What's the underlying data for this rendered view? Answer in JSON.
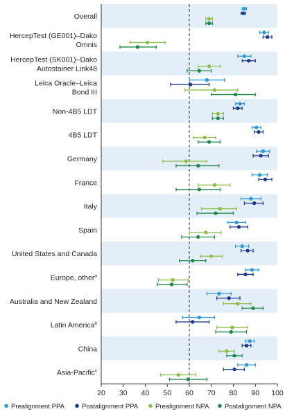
{
  "chart_data": {
    "type": "forest",
    "xlim": [
      20,
      100
    ],
    "xticks": [
      20,
      30,
      40,
      50,
      60,
      70,
      80,
      90,
      100
    ],
    "reference_line": 60,
    "legend_placement": "bottom",
    "series": [
      {
        "name": "Prealignment PPA",
        "color": "#2e9bd6"
      },
      {
        "name": "Postalignment PPA",
        "color": "#1e3c8c"
      },
      {
        "name": "Prealignment NPA",
        "color": "#8cbf4a"
      },
      {
        "name": "Postalignment NPA",
        "color": "#1f8a4c"
      }
    ],
    "categories": [
      {
        "lines": [
          "Overall"
        ],
        "sup": "",
        "values": [
          [
            85,
            84,
            86
          ],
          [
            84.5,
            83.5,
            85.5
          ],
          [
            69,
            67.5,
            70.5
          ],
          [
            69,
            67.5,
            70.5
          ]
        ]
      },
      {
        "lines": [
          "HercepTest (GE001)–Dako",
          "Omnis"
        ],
        "sup": "",
        "values": [
          [
            94,
            92,
            96
          ],
          [
            95.5,
            93.5,
            97.5
          ],
          [
            41,
            33,
            49
          ],
          [
            36.5,
            28.5,
            45
          ]
        ]
      },
      {
        "lines": [
          "HercepTest (SK001)–Dako",
          "Autostainer Link48"
        ],
        "sup": "",
        "values": [
          [
            85,
            82,
            88
          ],
          [
            87,
            84,
            90
          ],
          [
            69,
            64,
            74
          ],
          [
            64.5,
            59,
            70
          ]
        ]
      },
      {
        "lines": [
          "Leica Oracle–Leica",
          "Bond III"
        ],
        "sup": "",
        "values": [
          [
            68,
            60,
            76
          ],
          [
            60.5,
            51.5,
            69
          ],
          [
            71.5,
            58,
            82
          ],
          [
            81,
            70,
            90
          ]
        ]
      },
      {
        "lines": [
          "Non-4B5 LDT"
        ],
        "sup": "",
        "values": [
          [
            83,
            81,
            85
          ],
          [
            82,
            80,
            84
          ],
          [
            73,
            70.5,
            75.5
          ],
          [
            73,
            70.5,
            75.5
          ]
        ]
      },
      {
        "lines": [
          "4B5 LDT"
        ],
        "sup": "",
        "values": [
          [
            90.5,
            88.5,
            92.5
          ],
          [
            91.5,
            89.5,
            93.5
          ],
          [
            67,
            62,
            72
          ],
          [
            69,
            64,
            74
          ]
        ]
      },
      {
        "lines": [
          "Germany"
        ],
        "sup": "",
        "values": [
          [
            93.5,
            90.5,
            96.5
          ],
          [
            92.5,
            89,
            96
          ],
          [
            58.5,
            48,
            68
          ],
          [
            64,
            54,
            73.5
          ]
        ]
      },
      {
        "lines": [
          "France"
        ],
        "sup": "",
        "values": [
          [
            92,
            88.5,
            95.5
          ],
          [
            94.5,
            91.5,
            97.5
          ],
          [
            71.5,
            64,
            78.5
          ],
          [
            64.5,
            54,
            74
          ]
        ]
      },
      {
        "lines": [
          "Italy"
        ],
        "sup": "",
        "values": [
          [
            88,
            83.5,
            92.5
          ],
          [
            89.5,
            85,
            93.5
          ],
          [
            74,
            65.5,
            81.5
          ],
          [
            72,
            63.5,
            80
          ]
        ]
      },
      {
        "lines": [
          "Spain"
        ],
        "sup": "",
        "values": [
          [
            81.5,
            77.5,
            85.5
          ],
          [
            82.5,
            78.5,
            86.5
          ],
          [
            67.5,
            60,
            74.5
          ],
          [
            64,
            56.5,
            71.5
          ]
        ]
      },
      {
        "lines": [
          "United States and Canada"
        ],
        "sup": "",
        "values": [
          [
            84,
            81,
            87
          ],
          [
            86.5,
            83.5,
            89
          ],
          [
            70,
            65,
            75
          ],
          [
            61.5,
            55.5,
            67.5
          ]
        ]
      },
      {
        "lines": [
          "Europe, other"
        ],
        "sup": "a",
        "values": [
          [
            88.5,
            85.5,
            91.5
          ],
          [
            85.5,
            82,
            89
          ],
          [
            52.5,
            46,
            59.5
          ],
          [
            52,
            45.5,
            59
          ]
        ]
      },
      {
        "lines": [
          "Australia and New Zealand"
        ],
        "sup": "",
        "values": [
          [
            73.5,
            68,
            79
          ],
          [
            78,
            72.5,
            83
          ],
          [
            82,
            75.5,
            88
          ],
          [
            89,
            84,
            93.5
          ]
        ]
      },
      {
        "lines": [
          "Latin America"
        ],
        "sup": "b",
        "values": [
          [
            64.5,
            57,
            71.5
          ],
          [
            61.5,
            54,
            69
          ],
          [
            79.5,
            72.5,
            86.5
          ],
          [
            79,
            72,
            86
          ]
        ]
      },
      {
        "lines": [
          "China"
        ],
        "sup": "",
        "values": [
          [
            87.5,
            85.5,
            89.5
          ],
          [
            86,
            84,
            88
          ],
          [
            77,
            73.5,
            80.5
          ],
          [
            80.5,
            77,
            84
          ]
        ]
      },
      {
        "lines": [
          "Asia-Pacific"
        ],
        "sup": "c",
        "values": [
          [
            86,
            82,
            90
          ],
          [
            80.5,
            75.5,
            85
          ],
          [
            55,
            47,
            63
          ],
          [
            59.5,
            51,
            68
          ]
        ]
      }
    ]
  }
}
